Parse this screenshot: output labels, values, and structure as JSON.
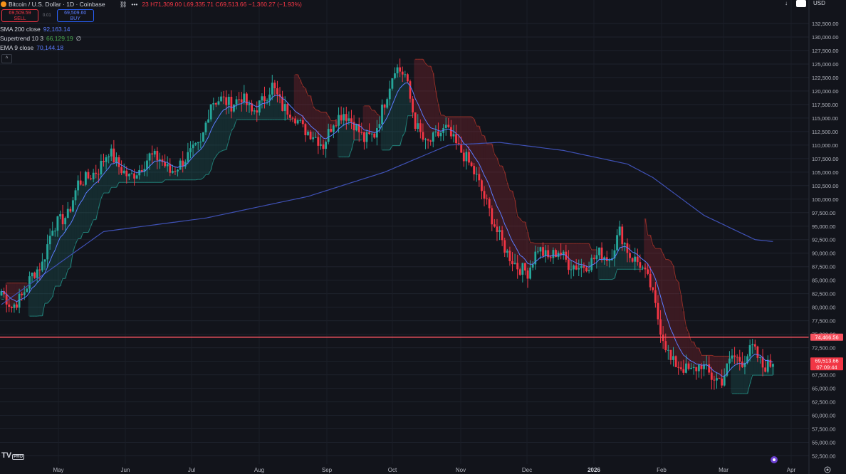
{
  "header": {
    "symbol_title": "Bitcoin / U.S. Dollar · 1D · Coinbase",
    "change_count": "23",
    "open": "H71,309.00",
    "low": "L69,335.71",
    "close": "C69,513.66",
    "change": "−1,360.27 (−1.93%)",
    "currency": "USD"
  },
  "trade_buttons": {
    "sell_price": "69,509.59",
    "sell_label": "SELL",
    "spread": "0.01",
    "buy_price": "69,509.60",
    "buy_label": "BUY"
  },
  "indicators": [
    {
      "name": "SMA 200 close",
      "value": "92,163.14",
      "color": "#5b7cff"
    },
    {
      "name": "Supertrend 10 3",
      "value": "66,129.19",
      "extra": "∅",
      "color": "#4caf50"
    },
    {
      "name": "EMA 9 close",
      "value": "70,144.18",
      "color": "#5b7cff"
    }
  ],
  "collapse_icon": "chevron-up-icon",
  "price_labels": {
    "hline": "74,466.56",
    "last_price": "69,513.66",
    "countdown": "07:09:44"
  },
  "colors": {
    "background": "#12141b",
    "bull": "#26a69a",
    "bear": "#f23645",
    "sma": "#3f51b5",
    "ema": "#5b7cff",
    "hline": "#f7525f"
  },
  "logo_text": "TV",
  "logo_badge": "PRO",
  "chart_data": {
    "type": "candlestick",
    "ylim": [
      51250,
      135000
    ],
    "y_ticks": [
      "132,500.00",
      "130,000.00",
      "127,500.00",
      "125,000.00",
      "122,500.00",
      "120,000.00",
      "117,500.00",
      "115,000.00",
      "112,500.00",
      "110,000.00",
      "107,500.00",
      "105,000.00",
      "102,500.00",
      "100,000.00",
      "97,500.00",
      "95,000.00",
      "92,500.00",
      "90,000.00",
      "87,500.00",
      "85,000.00",
      "82,500.00",
      "80,000.00",
      "77,500.00",
      "75,000.00",
      "72,500.00",
      "70,000.00",
      "67,500.00",
      "65,000.00",
      "62,500.00",
      "60,000.00",
      "57,500.00",
      "55,000.00",
      "52,500.00"
    ],
    "x_ticks": [
      "May",
      "Jun",
      "Jul",
      "Aug",
      "Sep",
      "Oct",
      "Nov",
      "Dec",
      "2026",
      "Feb",
      "Mar",
      "Apr"
    ],
    "price_path": [
      [
        0,
        83000
      ],
      [
        4,
        80000
      ],
      [
        8,
        82000
      ],
      [
        12,
        86000
      ],
      [
        16,
        88000
      ],
      [
        20,
        95000
      ],
      [
        26,
        97000
      ],
      [
        30,
        103000
      ],
      [
        34,
        104000
      ],
      [
        38,
        105500
      ],
      [
        42,
        109000
      ],
      [
        46,
        106000
      ],
      [
        50,
        104000
      ],
      [
        54,
        105500
      ],
      [
        58,
        108000
      ],
      [
        62,
        107500
      ],
      [
        66,
        105000
      ],
      [
        70,
        106500
      ],
      [
        74,
        108500
      ],
      [
        78,
        110000
      ],
      [
        82,
        118000
      ],
      [
        86,
        118500
      ],
      [
        90,
        117500
      ],
      [
        94,
        119000
      ],
      [
        98,
        116000
      ],
      [
        102,
        118000
      ],
      [
        106,
        121000
      ],
      [
        110,
        117000
      ],
      [
        114,
        116000
      ],
      [
        118,
        113000
      ],
      [
        122,
        112000
      ],
      [
        126,
        110000
      ],
      [
        130,
        114500
      ],
      [
        134,
        116000
      ],
      [
        138,
        114000
      ],
      [
        142,
        111000
      ],
      [
        146,
        112000
      ],
      [
        150,
        118000
      ],
      [
        154,
        124500
      ],
      [
        158,
        123000
      ],
      [
        162,
        114000
      ],
      [
        166,
        110000
      ],
      [
        170,
        111500
      ],
      [
        174,
        113000
      ],
      [
        178,
        110000
      ],
      [
        182,
        107500
      ],
      [
        186,
        104000
      ],
      [
        190,
        99000
      ],
      [
        194,
        94000
      ],
      [
        198,
        90000
      ],
      [
        202,
        87500
      ],
      [
        206,
        86500
      ],
      [
        210,
        91000
      ],
      [
        214,
        89000
      ],
      [
        218,
        90500
      ],
      [
        222,
        88000
      ],
      [
        226,
        87500
      ],
      [
        230,
        88000
      ],
      [
        234,
        90000
      ],
      [
        238,
        89000
      ],
      [
        242,
        94000
      ],
      [
        246,
        89500
      ],
      [
        250,
        88000
      ],
      [
        254,
        84000
      ],
      [
        258,
        76000
      ],
      [
        262,
        70000
      ],
      [
        266,
        69000
      ],
      [
        270,
        68000
      ],
      [
        274,
        69500
      ],
      [
        278,
        67000
      ],
      [
        282,
        66500
      ],
      [
        286,
        71000
      ],
      [
        290,
        70000
      ],
      [
        294,
        72500
      ],
      [
        298,
        69000
      ],
      [
        302,
        69500
      ]
    ],
    "sma200_path": [
      [
        0,
        80500
      ],
      [
        40,
        94000
      ],
      [
        80,
        96500
      ],
      [
        120,
        100500
      ],
      [
        150,
        105000
      ],
      [
        175,
        110000
      ],
      [
        195,
        110500
      ],
      [
        220,
        109000
      ],
      [
        245,
        106500
      ],
      [
        255,
        104000
      ],
      [
        275,
        97000
      ],
      [
        295,
        92500
      ],
      [
        302,
        92160
      ]
    ],
    "hline_value": 74466.56,
    "last_value": 69513.66
  }
}
